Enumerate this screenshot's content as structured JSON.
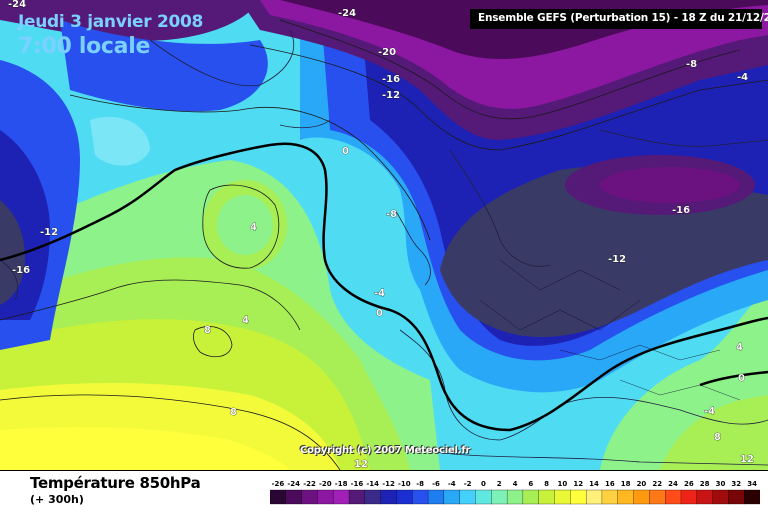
{
  "header": {
    "date": "Jeudi 3 janvier 2008",
    "time": "7:00 locale",
    "run": "Ensemble GEFS (Perturbation 15)  -  18 Z du 21/12/2007"
  },
  "footer": {
    "parameter": "Température 850hPa",
    "lead": "(+ 300h)",
    "copyright": "Copyright (c) 2007 Meteociel.fr"
  },
  "legend": {
    "values": [
      "-26",
      "-24",
      "-22",
      "-20",
      "-18",
      "-16",
      "-14",
      "-12",
      "-10",
      "-8",
      "-6",
      "-4",
      "-2",
      "0",
      "2",
      "4",
      "6",
      "8",
      "10",
      "12",
      "14",
      "16",
      "18",
      "20",
      "22",
      "24",
      "26",
      "28",
      "30",
      "32",
      "34"
    ],
    "colors": [
      "#2a0633",
      "#4c0a5a",
      "#6c1280",
      "#8c18a2",
      "#a21fb8",
      "#551978",
      "#3a2a8a",
      "#1e22b4",
      "#1a2ed2",
      "#2850ee",
      "#1e7df0",
      "#2aa8f8",
      "#45d0fc",
      "#5ee8e0",
      "#7cf2b8",
      "#8ef28a",
      "#a8ee55",
      "#c8f23a",
      "#e8f834",
      "#ffff3c",
      "#fff07a",
      "#ffd040",
      "#ffb820",
      "#ff9a10",
      "#ff7818",
      "#ff4c18",
      "#ee2418",
      "#c81414",
      "#a00c0c",
      "#780606",
      "#2a0000"
    ]
  },
  "map_labels": [
    {
      "text": "-24"
    },
    {
      "text": "-24"
    },
    {
      "text": "-20"
    },
    {
      "text": "-16"
    },
    {
      "text": "-12"
    },
    {
      "text": "-8"
    },
    {
      "text": "-4"
    },
    {
      "text": "0"
    },
    {
      "text": "-8"
    },
    {
      "text": "-16"
    },
    {
      "text": "-12"
    },
    {
      "text": "-12"
    },
    {
      "text": "-16"
    },
    {
      "text": "4"
    },
    {
      "text": "4"
    },
    {
      "text": "8"
    },
    {
      "text": "8"
    },
    {
      "text": "-4"
    },
    {
      "text": "0"
    },
    {
      "text": "4"
    },
    {
      "text": "0"
    },
    {
      "text": "-4"
    },
    {
      "text": "8"
    },
    {
      "text": "12"
    },
    {
      "text": "12"
    }
  ],
  "colors": {
    "deep_violet": "#4c0a5a",
    "violet": "#8c18a2",
    "navy": "#1e22b4",
    "blue": "#2850ee",
    "cyan": "#45d0fc",
    "green": "#a8ee55",
    "yellow": "#ffff3c",
    "dark_slate": "#3a3a66"
  }
}
